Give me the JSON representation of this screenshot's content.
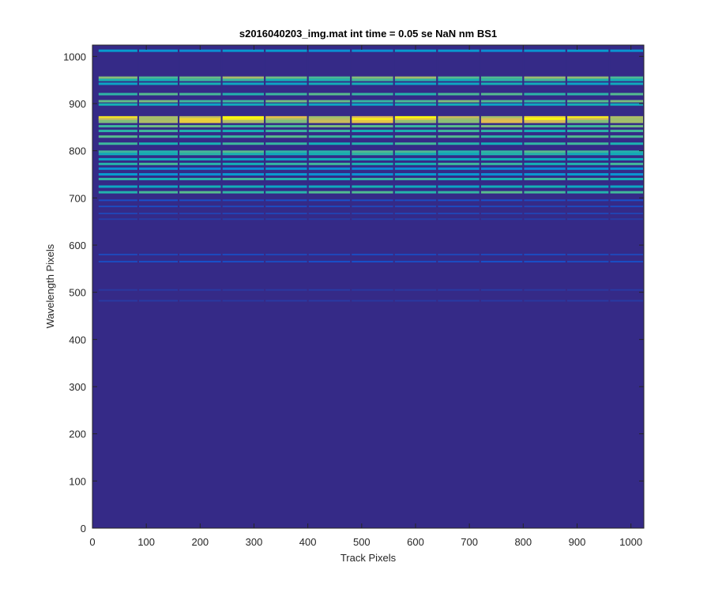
{
  "chart_data": {
    "type": "heatmap",
    "title": "s2016040203_img.mat int time = 0.05 se  NaN nm BS1",
    "xlabel": "Track Pixels",
    "ylabel": "Wavelength Pixels",
    "xlim": [
      0,
      1024
    ],
    "ylim": [
      0,
      1024
    ],
    "xticks": [
      "0",
      "100",
      "200",
      "300",
      "400",
      "500",
      "600",
      "700",
      "800",
      "900",
      "1000"
    ],
    "yticks": [
      "0",
      "100",
      "200",
      "300",
      "400",
      "500",
      "600",
      "700",
      "800",
      "900",
      "1000"
    ],
    "colormap": "parula",
    "background_color": "#352a87",
    "track_boundaries": [
      10,
      85,
      160,
      240,
      320,
      400,
      480,
      560,
      640,
      720,
      800,
      880,
      960,
      1024
    ],
    "lines": [
      {
        "y": 1012,
        "intensity": 0.45
      },
      {
        "y": 955,
        "intensity": 0.85
      },
      {
        "y": 950,
        "intensity": 0.7
      },
      {
        "y": 942,
        "intensity": 0.6
      },
      {
        "y": 920,
        "intensity": 0.75
      },
      {
        "y": 905,
        "intensity": 0.8
      },
      {
        "y": 898,
        "intensity": 0.6
      },
      {
        "y": 870,
        "intensity": 1.0
      },
      {
        "y": 866,
        "intensity": 1.0
      },
      {
        "y": 862,
        "intensity": 0.95
      },
      {
        "y": 852,
        "intensity": 0.8
      },
      {
        "y": 842,
        "intensity": 0.7
      },
      {
        "y": 830,
        "intensity": 0.75
      },
      {
        "y": 815,
        "intensity": 0.7
      },
      {
        "y": 798,
        "intensity": 0.75
      },
      {
        "y": 793,
        "intensity": 0.65
      },
      {
        "y": 782,
        "intensity": 0.6
      },
      {
        "y": 772,
        "intensity": 0.7
      },
      {
        "y": 762,
        "intensity": 0.4
      },
      {
        "y": 750,
        "intensity": 0.45
      },
      {
        "y": 740,
        "intensity": 0.7
      },
      {
        "y": 724,
        "intensity": 0.6
      },
      {
        "y": 712,
        "intensity": 0.75
      },
      {
        "y": 695,
        "intensity": 0.12
      },
      {
        "y": 682,
        "intensity": 0.1
      },
      {
        "y": 667,
        "intensity": 0.08
      },
      {
        "y": 655,
        "intensity": 0.06
      },
      {
        "y": 580,
        "intensity": 0.1
      },
      {
        "y": 565,
        "intensity": 0.12
      },
      {
        "y": 505,
        "intensity": 0.05
      },
      {
        "y": 482,
        "intensity": 0.05
      }
    ]
  }
}
